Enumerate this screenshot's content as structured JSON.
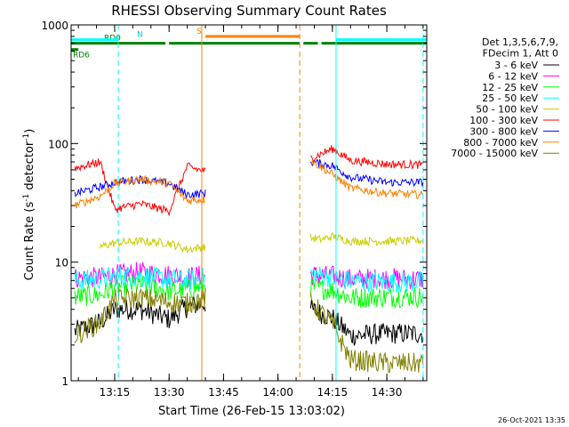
{
  "chart_data": {
    "type": "line",
    "title": "RHESSI Observing Summary Count Rates",
    "xlabel": "Start Time (26-Feb-15 13:03:02)",
    "ylabel_main": "Count Rate (s",
    "ylabel_sup1": "-1",
    "ylabel_mid": " detector",
    "ylabel_sup2": "-1",
    "ylabel_end": ")",
    "y_scale": "log",
    "ylim": [
      1,
      1000
    ],
    "xlim": [
      "13:03",
      "14:41"
    ],
    "x_ticks": [
      "13:15",
      "13:30",
      "13:45",
      "14:00",
      "14:15",
      "14:30"
    ],
    "y_ticks": [
      "1",
      "10",
      "100",
      "1000"
    ],
    "legend_header": [
      "Det 1,3,5,6,7,9,",
      "FDecim 1, Att 0"
    ],
    "legend_position": "right",
    "gaps": [
      [
        "13:40",
        "14:09"
      ]
    ],
    "series": [
      {
        "name": "3 - 6 keV",
        "color": "#000000",
        "x": [
          "13:04",
          "13:11",
          "13:15",
          "13:22",
          "13:30",
          "13:35",
          "13:40",
          "14:09",
          "14:15",
          "14:20",
          "14:30",
          "14:40"
        ],
        "y": [
          2.6,
          3.1,
          4.0,
          4.0,
          3.3,
          4.2,
          4.5,
          4.0,
          3.4,
          2.4,
          2.5,
          2.5
        ]
      },
      {
        "name": "6 - 12 keV",
        "color": "#ff00ff",
        "x": [
          "13:04",
          "13:11",
          "13:15",
          "13:22",
          "13:30",
          "13:35",
          "13:40",
          "14:09",
          "14:15",
          "14:20",
          "14:30",
          "14:40"
        ],
        "y": [
          7.4,
          7.4,
          7.8,
          8.2,
          7.8,
          7.5,
          7.8,
          7.8,
          7.6,
          7.2,
          7.3,
          7.2
        ]
      },
      {
        "name": "12 - 25 keV",
        "color": "#00ff00",
        "x": [
          "13:04",
          "13:11",
          "13:15",
          "13:22",
          "13:30",
          "13:35",
          "13:40",
          "14:09",
          "14:15",
          "14:20",
          "14:30",
          "14:40"
        ],
        "y": [
          5.1,
          5.3,
          6.2,
          6.5,
          5.7,
          5.9,
          6.3,
          6.2,
          5.8,
          5.0,
          5.1,
          5.1
        ]
      },
      {
        "name": "25 - 50 keV",
        "color": "#00ffff",
        "x": [
          "13:04",
          "13:11",
          "13:15",
          "13:22",
          "13:30",
          "13:35",
          "13:40",
          "14:09",
          "14:15",
          "14:20",
          "14:30",
          "14:40"
        ],
        "y": [
          7.0,
          7.2,
          7.6,
          7.6,
          7.2,
          7.0,
          7.4,
          8.0,
          7.4,
          6.9,
          6.8,
          6.8
        ]
      },
      {
        "name": "50 - 100 keV",
        "color": "#cccc00",
        "x": [
          "13:11",
          "13:15",
          "13:22",
          "13:30",
          "13:35",
          "13:40",
          "14:09",
          "14:12",
          "14:15",
          "14:20",
          "14:30",
          "14:40"
        ],
        "y": [
          13.5,
          14.5,
          15.0,
          14.5,
          12.8,
          13.5,
          16.0,
          15.5,
          16.5,
          15.0,
          15.0,
          15.2
        ]
      },
      {
        "name": "100 - 300 keV",
        "color": "#ff0000",
        "x": [
          "13:04",
          "13:11",
          "13:15",
          "13:22",
          "13:30",
          "13:35",
          "13:40",
          "14:09",
          "14:15",
          "14:20",
          "14:30",
          "14:40"
        ],
        "y": [
          62,
          70,
          28,
          31,
          27,
          64,
          58,
          75,
          90,
          72,
          67,
          66
        ]
      },
      {
        "name": "300 - 800 keV",
        "color": "#0000ff",
        "x": [
          "13:04",
          "13:11",
          "13:15",
          "13:22",
          "13:30",
          "13:35",
          "13:40",
          "14:09",
          "14:15",
          "14:20",
          "14:30",
          "14:40"
        ],
        "y": [
          38,
          43,
          47,
          50,
          46,
          37,
          38,
          70,
          65,
          52,
          47,
          47
        ]
      },
      {
        "name": "800 - 7000 keV",
        "color": "#ff8000",
        "x": [
          "13:04",
          "13:11",
          "13:15",
          "13:22",
          "13:30",
          "13:35",
          "13:40",
          "14:09",
          "14:15",
          "14:20",
          "14:30",
          "14:40"
        ],
        "y": [
          30,
          36,
          46,
          50,
          46,
          33,
          34,
          72,
          55,
          42,
          38,
          37
        ]
      },
      {
        "name": "7000 - 15000 keV",
        "color": "#808000",
        "x": [
          "13:04",
          "13:11",
          "13:15",
          "13:22",
          "13:30",
          "13:35",
          "13:40",
          "14:09",
          "14:15",
          "14:20",
          "14:30",
          "14:40"
        ],
        "y": [
          2.4,
          3.1,
          4.8,
          5.0,
          4.6,
          4.5,
          5.0,
          4.6,
          3.0,
          1.5,
          1.4,
          1.4
        ]
      }
    ],
    "state_bars": [
      {
        "label": "RD0",
        "color": "#008000",
        "level": 700,
        "segments": [
          [
            "13:03",
            "13:29"
          ],
          [
            "13:30",
            "14:06"
          ],
          [
            "14:07",
            "14:11"
          ],
          [
            "14:12",
            "14:41"
          ]
        ]
      },
      {
        "label": "RD6",
        "color": "#008000",
        "level": 620,
        "segments": [
          [
            "13:03",
            "13:05"
          ]
        ]
      },
      {
        "label": "S",
        "color": "#ff8000",
        "level": 800,
        "segments": [
          [
            "13:40",
            "14:06"
          ]
        ]
      },
      {
        "label": "N",
        "color": "#00ffff",
        "level": 750,
        "segments": [
          [
            "13:03",
            "13:16"
          ],
          [
            "14:16",
            "14:41"
          ]
        ]
      }
    ],
    "markers": [
      {
        "x": "13:16",
        "color": "#00ffff",
        "style": "dashed"
      },
      {
        "x": "13:39",
        "color": "#ff8000",
        "style": "solid"
      },
      {
        "x": "14:06",
        "color": "#ff8000",
        "style": "dashed"
      },
      {
        "x": "14:16",
        "color": "#00ffff",
        "style": "solid"
      },
      {
        "x": "14:40",
        "color": "#00ffff",
        "style": "dashed"
      }
    ]
  },
  "timestamp": "26-Oct-2021 13:35"
}
